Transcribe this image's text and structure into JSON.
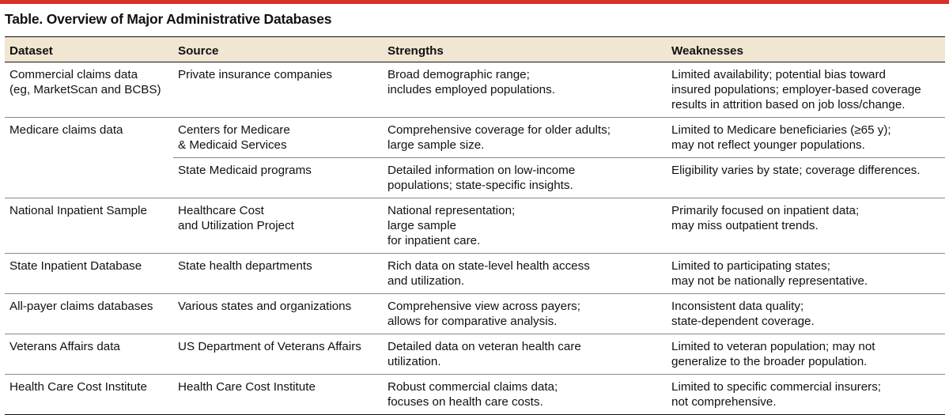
{
  "title": "Table. Overview of Major Administrative Databases",
  "colors": {
    "top_rule": "#d6312b",
    "header_bg": "#f1e6d2"
  },
  "headers": {
    "dataset": "Dataset",
    "source": "Source",
    "strengths": "Strengths",
    "weaknesses": "Weaknesses"
  },
  "rows": [
    {
      "dataset": [
        "Commercial claims data",
        "(eg, MarketScan and BCBS)"
      ],
      "source": [
        "Private insurance companies"
      ],
      "strengths": [
        "Broad demographic range;",
        "includes employed populations."
      ],
      "weaknesses": [
        "Limited availability; potential bias toward",
        "insured populations; employer-based coverage",
        "results in attrition based on job loss/change."
      ]
    },
    {
      "dataset": [
        "Medicare claims data"
      ],
      "source": [
        "Centers for Medicare",
        "& Medicaid Services"
      ],
      "strengths": [
        "Comprehensive coverage for older adults;",
        "large sample size."
      ],
      "weaknesses": [
        "Limited to Medicare beneficiaries (≥65 y);",
        "may not reflect younger populations."
      ]
    },
    {
      "dataset": [],
      "source": [
        "State Medicaid programs"
      ],
      "strengths": [
        "Detailed information on low-income",
        "populations; state-specific insights."
      ],
      "weaknesses": [
        "Eligibility varies by state; coverage differences."
      ]
    },
    {
      "dataset": [
        "National Inpatient Sample"
      ],
      "source": [
        "Healthcare Cost",
        "and Utilization Project"
      ],
      "strengths": [
        "National representation;",
        "large sample",
        "for inpatient care."
      ],
      "weaknesses": [
        "Primarily focused on inpatient data;",
        "may miss outpatient trends."
      ]
    },
    {
      "dataset": [
        "State Inpatient Database"
      ],
      "source": [
        "State health departments"
      ],
      "strengths": [
        "Rich data on state-level health access",
        "and utilization."
      ],
      "weaknesses": [
        "Limited to participating states;",
        "may not be nationally representative."
      ]
    },
    {
      "dataset": [
        "All-payer claims databases"
      ],
      "source": [
        "Various states and organizations"
      ],
      "strengths": [
        "Comprehensive view across payers;",
        "allows for comparative analysis."
      ],
      "weaknesses": [
        "Inconsistent data quality;",
        "state-dependent coverage."
      ]
    },
    {
      "dataset": [
        "Veterans Affairs data"
      ],
      "source": [
        "US Department of Veterans Affairs"
      ],
      "strengths": [
        "Detailed data on veteran health care",
        "utilization."
      ],
      "weaknesses": [
        "Limited to veteran population; may not",
        "generalize to the broader population."
      ]
    },
    {
      "dataset": [
        "Health Care Cost Institute"
      ],
      "source": [
        "Health Care Cost Institute"
      ],
      "strengths": [
        "Robust commercial claims data;",
        "focuses on health care costs."
      ],
      "weaknesses": [
        "Limited to specific commercial insurers;",
        "not comprehensive."
      ]
    }
  ]
}
